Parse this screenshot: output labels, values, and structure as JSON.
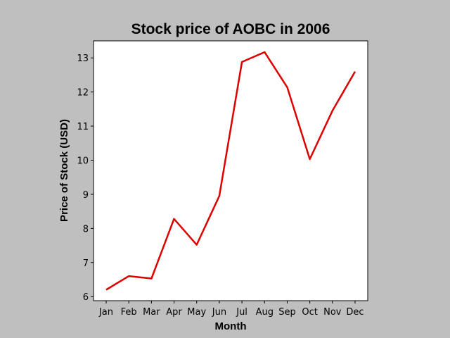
{
  "chart_data": {
    "type": "line",
    "title": "Stock price of AOBC in 2006",
    "xlabel": "Month",
    "ylabel": "Price of Stock (USD)",
    "categories": [
      "Jan",
      "Feb",
      "Mar",
      "Apr",
      "May",
      "Jun",
      "Jul",
      "Aug",
      "Sep",
      "Oct",
      "Nov",
      "Dec"
    ],
    "series": [
      {
        "values": [
          6.2,
          6.6,
          6.53,
          8.28,
          7.52,
          8.95,
          12.88,
          13.17,
          12.14,
          10.03,
          11.45,
          12.6
        ],
        "color": "#dd0000"
      }
    ],
    "yticks": [
      "6",
      "7",
      "8",
      "9",
      "10",
      "11",
      "12",
      "13"
    ],
    "ylim": [
      5.88,
      13.5
    ],
    "grid": false,
    "legend": false
  }
}
